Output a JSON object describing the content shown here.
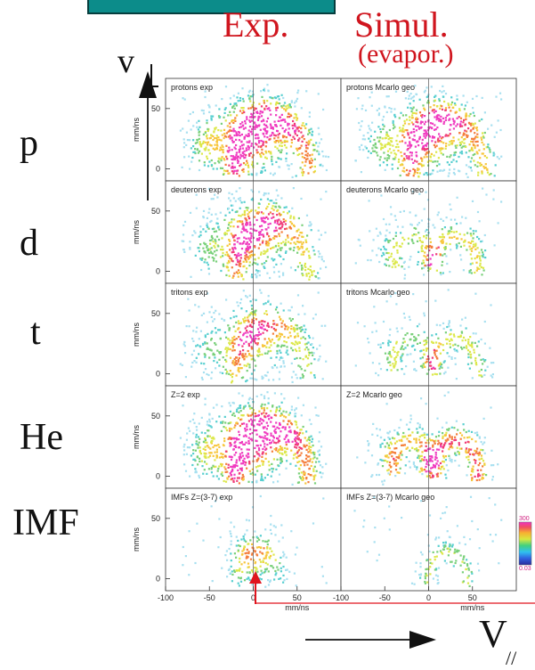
{
  "header": {
    "exp_label": "Exp.",
    "sim_label": "Simul.",
    "sim_sublabel": "(evapor.)",
    "vperp_label": "v",
    "vpar_label": "V",
    "vpar_subscript": "//"
  },
  "rows": [
    {
      "label": "p"
    },
    {
      "label": "d"
    },
    {
      "label": "t"
    },
    {
      "label": "He"
    },
    {
      "label": "IMF"
    }
  ],
  "colors": {
    "title_box": "#0c8c8a",
    "column_titles": "#d0151e",
    "arrow_red": "#e0151e",
    "density_scale": [
      "#ffffff",
      "#a8e0f0",
      "#58cfd0",
      "#79d07a",
      "#dce84b",
      "#f7c63c",
      "#f47e3c",
      "#f03c78",
      "#f03cc0"
    ]
  },
  "chart_data": {
    "type": "heatmap",
    "xlim": [
      -100,
      100
    ],
    "ylim": [
      -10,
      75
    ],
    "x_ticks": [
      "-100",
      "-50",
      "0",
      "50"
    ],
    "y_ticks": [
      "0",
      "50"
    ],
    "xlabel": "mm/ns",
    "ylabel": "mm/ns",
    "colorbar": {
      "max_label": "300",
      "min_label": "0.03",
      "log_scale": true
    },
    "panels": [
      {
        "title": "protons exp",
        "row": 0,
        "col": 0,
        "intensity": 0.95,
        "shape": "broad"
      },
      {
        "title": "protons Mcarlo geo",
        "row": 0,
        "col": 1,
        "intensity": 0.8,
        "shape": "broad"
      },
      {
        "title": "deuterons exp",
        "row": 1,
        "col": 0,
        "intensity": 0.72,
        "shape": "broad"
      },
      {
        "title": "deuterons Mcarlo geo",
        "row": 1,
        "col": 1,
        "intensity": 0.6,
        "shape": "double"
      },
      {
        "title": "tritons exp",
        "row": 2,
        "col": 0,
        "intensity": 0.6,
        "shape": "broad"
      },
      {
        "title": "tritons Mcarlo geo",
        "row": 2,
        "col": 1,
        "intensity": 0.55,
        "shape": "double"
      },
      {
        "title": "Z=2 exp",
        "row": 3,
        "col": 0,
        "intensity": 0.95,
        "shape": "broad"
      },
      {
        "title": "Z=2 Mcarlo geo",
        "row": 3,
        "col": 1,
        "intensity": 0.85,
        "shape": "double"
      },
      {
        "title": "IMFs Z=(3-7) exp",
        "row": 4,
        "col": 0,
        "intensity": 0.55,
        "shape": "compact"
      },
      {
        "title": "IMFs Z=(3-7) Mcarlo geo",
        "row": 4,
        "col": 1,
        "intensity": 0.5,
        "shape": "arc"
      }
    ]
  }
}
